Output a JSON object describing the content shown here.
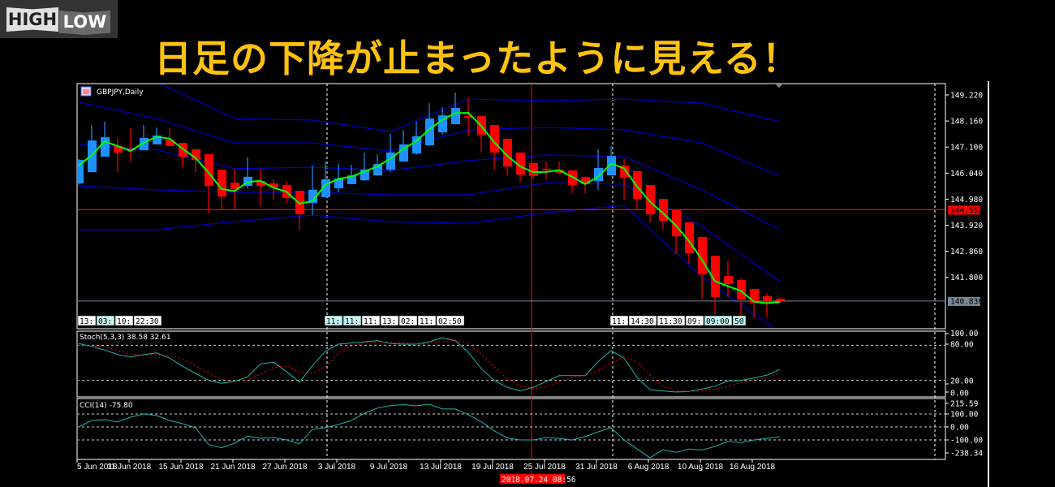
{
  "logo": {
    "text_high": "HIGH",
    "text_low": "LOW"
  },
  "headline": "日足の下降が止まったように見える！",
  "colors": {
    "bull": "#1e90ff",
    "bear": "#ff0000",
    "ma": "#00ff00",
    "bands": "#0000cc",
    "stoch_main": "#20b2aa",
    "stoch_signal": "#ff0000",
    "cci": "#20b2aa",
    "hline": "#ff0000",
    "bid_line": "#778899"
  },
  "chart_data": [
    {
      "type": "candlestick",
      "title": "GBPJPY,Daily",
      "ylim": [
        139.71,
        149.68
      ],
      "y_ticks": [
        "149.220",
        "148.160",
        "147.100",
        "146.040",
        "144.980",
        "143.920",
        "142.860",
        "141.800"
      ],
      "hline_label": "144.552",
      "hline_value": 144.552,
      "bid_label": "140.836",
      "bid_value": 140.836,
      "x_tick_labels": [
        "5 Jun 2018",
        "11 Jun 2018",
        "15 Jun 2018",
        "21 Jun 2018",
        "27 Jun 2018",
        "3 Jul 2018",
        "9 Jul 2018",
        "13 Jul 2018",
        "19 Jul 2018",
        "25 Jul 2018",
        "31 Jul 2018",
        "6 Aug 2018",
        "10 Aug 2018",
        "16 Aug 2018"
      ],
      "crosshair_label": "2018.07.24 08:56",
      "dates": [
        "2018-06-05",
        "2018-06-06",
        "2018-06-07",
        "2018-06-08",
        "2018-06-11",
        "2018-06-12",
        "2018-06-13",
        "2018-06-14",
        "2018-06-15",
        "2018-06-18",
        "2018-06-19",
        "2018-06-20",
        "2018-06-21",
        "2018-06-22",
        "2018-06-25",
        "2018-06-26",
        "2018-06-27",
        "2018-06-28",
        "2018-06-29",
        "2018-07-02",
        "2018-07-03",
        "2018-07-04",
        "2018-07-05",
        "2018-07-06",
        "2018-07-09",
        "2018-07-10",
        "2018-07-11",
        "2018-07-12",
        "2018-07-13",
        "2018-07-16",
        "2018-07-17",
        "2018-07-18",
        "2018-07-19",
        "2018-07-20",
        "2018-07-23",
        "2018-07-24",
        "2018-07-25",
        "2018-07-26",
        "2018-07-27",
        "2018-07-30",
        "2018-07-31",
        "2018-08-01",
        "2018-08-02",
        "2018-08-03",
        "2018-08-06",
        "2018-08-07",
        "2018-08-08",
        "2018-08-09",
        "2018-08-10",
        "2018-08-13",
        "2018-08-14",
        "2018-08-15",
        "2018-08-16",
        "2018-08-17",
        "2018-08-20"
      ],
      "ohlc": [
        [
          145.62,
          146.62,
          145.58,
          146.58
        ],
        [
          146.08,
          148.0,
          146.08,
          147.37
        ],
        [
          146.71,
          148.13,
          146.71,
          147.5
        ],
        [
          147.14,
          147.44,
          146.08,
          146.88
        ],
        [
          147.04,
          147.87,
          146.48,
          146.97
        ],
        [
          146.97,
          148.0,
          146.97,
          147.47
        ],
        [
          147.21,
          147.9,
          147.21,
          147.57
        ],
        [
          147.4,
          147.87,
          147.14,
          147.14
        ],
        [
          147.27,
          147.27,
          146.28,
          146.71
        ],
        [
          147.01,
          147.01,
          146.08,
          146.58
        ],
        [
          146.81,
          146.81,
          144.4,
          145.52
        ],
        [
          146.18,
          146.18,
          144.56,
          145.09
        ],
        [
          145.65,
          146.22,
          144.56,
          145.39
        ],
        [
          145.52,
          146.68,
          145.42,
          145.89
        ],
        [
          145.72,
          146.18,
          144.7,
          145.52
        ],
        [
          145.62,
          145.79,
          144.96,
          145.46
        ],
        [
          145.55,
          145.69,
          144.83,
          145.03
        ],
        [
          145.32,
          145.32,
          143.74,
          144.37
        ],
        [
          144.83,
          146.35,
          144.33,
          145.36
        ],
        [
          145.06,
          146.51,
          145.06,
          145.79
        ],
        [
          145.42,
          146.41,
          145.26,
          145.82
        ],
        [
          145.59,
          146.38,
          145.59,
          145.95
        ],
        [
          145.75,
          146.88,
          145.72,
          146.18
        ],
        [
          145.95,
          146.81,
          145.92,
          146.41
        ],
        [
          146.18,
          147.64,
          146.08,
          146.88
        ],
        [
          146.51,
          147.8,
          146.51,
          147.21
        ],
        [
          146.84,
          148.13,
          146.78,
          147.54
        ],
        [
          147.17,
          148.89,
          147.17,
          148.26
        ],
        [
          147.7,
          148.72,
          147.6,
          148.39
        ],
        [
          148.03,
          149.32,
          148.03,
          148.69
        ],
        [
          148.36,
          149.09,
          147.54,
          148.3
        ],
        [
          148.36,
          148.36,
          146.88,
          147.6
        ],
        [
          148.0,
          148.0,
          146.18,
          146.88
        ],
        [
          147.44,
          147.44,
          145.95,
          146.31
        ],
        [
          146.88,
          146.88,
          145.69,
          145.98
        ],
        [
          146.45,
          146.45,
          145.82,
          145.92
        ],
        [
          146.22,
          146.51,
          145.75,
          146.18
        ],
        [
          146.18,
          146.51,
          146.05,
          146.05
        ],
        [
          146.15,
          146.15,
          145.22,
          145.55
        ],
        [
          145.89,
          145.89,
          145.22,
          145.59
        ],
        [
          145.72,
          147.01,
          145.36,
          146.25
        ],
        [
          145.95,
          147.14,
          145.95,
          146.74
        ],
        [
          146.35,
          146.64,
          144.96,
          145.85
        ],
        [
          146.12,
          146.12,
          144.56,
          144.99
        ],
        [
          145.55,
          145.55,
          144.04,
          144.37
        ],
        [
          144.99,
          144.99,
          143.77,
          144.1
        ],
        [
          144.56,
          144.56,
          142.75,
          143.47
        ],
        [
          144.04,
          144.04,
          142.35,
          142.78
        ],
        [
          143.44,
          143.44,
          140.9,
          141.92
        ],
        [
          142.68,
          142.68,
          140.3,
          141.0
        ],
        [
          141.86,
          142.48,
          141.0,
          141.53
        ],
        [
          141.69,
          141.76,
          139.88,
          140.9
        ],
        [
          141.33,
          141.33,
          140.17,
          140.77
        ],
        [
          141.03,
          141.16,
          140.21,
          140.8
        ],
        [
          140.93,
          140.97,
          140.77,
          140.84
        ]
      ],
      "bands": {
        "index": [
          0,
          6,
          12,
          18,
          24,
          30,
          36,
          42,
          48,
          54
        ],
        "upper_outer": [
          149.78,
          149.75,
          148.26,
          148.2,
          147.73,
          149.05,
          148.99,
          149.05,
          148.89,
          148.13
        ],
        "upper_inner": [
          148.92,
          148.26,
          147.27,
          147.27,
          146.94,
          147.8,
          147.9,
          147.8,
          147.27,
          145.92
        ],
        "middle": [
          147.21,
          146.99,
          146.22,
          146.28,
          146.15,
          146.55,
          146.78,
          146.71,
          145.36,
          143.74
        ],
        "lower_inner": [
          145.52,
          145.36,
          145.26,
          145.26,
          145.16,
          145.16,
          145.65,
          145.59,
          143.87,
          141.63
        ],
        "lower_outer": [
          143.74,
          143.74,
          144.07,
          144.33,
          144.07,
          144.0,
          144.43,
          144.73,
          141.82,
          139.55
        ]
      },
      "event_markers": [
        {
          "index": 0,
          "labels": [
            {
              "t": "13:",
              "hl": false
            },
            {
              "t": "03:",
              "hl": true
            },
            {
              "t": "10:",
              "hl": false
            },
            {
              "t": "22:30",
              "hl": false
            }
          ]
        },
        {
          "index": 19,
          "labels": [
            {
              "t": "11:",
              "hl": true
            },
            {
              "t": "11:",
              "hl": true
            },
            {
              "t": "11:",
              "hl": false
            },
            {
              "t": "13:",
              "hl": false
            },
            {
              "t": "02:",
              "hl": false
            },
            {
              "t": "11:",
              "hl": false
            },
            {
              "t": "02:50",
              "hl": false
            }
          ]
        },
        {
          "index": 41,
          "labels": [
            {
              "t": "11:",
              "hl": false
            },
            {
              "t": "14:30",
              "hl": false
            },
            {
              "t": "11:30",
              "hl": false
            },
            {
              "t": "09:",
              "hl": false
            },
            {
              "t": "09:00",
              "hl": true
            },
            {
              "t": "50",
              "hl": true
            }
          ]
        }
      ]
    },
    {
      "type": "line",
      "title": "Stoch(5,3,3) 38.58 32.61",
      "ylim": [
        0,
        100
      ],
      "y_ticks": [
        "100.00",
        "80.00",
        "20.00",
        "0.00"
      ],
      "levels": [
        80,
        20
      ],
      "main": [
        83,
        78,
        72,
        64,
        60,
        64,
        67,
        58,
        44,
        32,
        20,
        15,
        18,
        26,
        48,
        51,
        35,
        17,
        45,
        70,
        82,
        84,
        86,
        88,
        83,
        82,
        82,
        86,
        93,
        88,
        68,
        40,
        20,
        8,
        2,
        8,
        18,
        28,
        28,
        28,
        52,
        71,
        58,
        25,
        4,
        2,
        0,
        1,
        5,
        10,
        19,
        20,
        24,
        29,
        38.58
      ],
      "signal": [
        80,
        79,
        78,
        71,
        65,
        63,
        64,
        63,
        56,
        45,
        32,
        22,
        18,
        20,
        31,
        42,
        45,
        34,
        32,
        44,
        66,
        79,
        84,
        86,
        86,
        84,
        82,
        83,
        87,
        89,
        83,
        65,
        43,
        23,
        10,
        6,
        9,
        18,
        25,
        28,
        36,
        50,
        60,
        51,
        29,
        10,
        2,
        1,
        2,
        5,
        11,
        16,
        21,
        24,
        32.61
      ]
    },
    {
      "type": "line",
      "title": "CCI(14) -75.80",
      "ylim": [
        -238.34,
        215.59
      ],
      "y_ticks": [
        "215.59",
        "100.00",
        "0.00",
        "-100.00",
        "-238.34"
      ],
      "levels": [
        100,
        0,
        -100
      ],
      "values": [
        0,
        50,
        56,
        38,
        75,
        100,
        88,
        50,
        25,
        -6,
        -135,
        -160,
        -125,
        -70,
        -88,
        -82,
        -100,
        -130,
        -19,
        -6,
        19,
        50,
        105,
        145,
        165,
        172,
        163,
        175,
        138,
        138,
        95,
        40,
        -30,
        -85,
        -100,
        -100,
        -82,
        -88,
        -100,
        -75,
        -38,
        -6,
        -100,
        -170,
        -238,
        -175,
        -195,
        -170,
        -178,
        -150,
        -112,
        -120,
        -100,
        -88,
        -75.8
      ]
    }
  ]
}
